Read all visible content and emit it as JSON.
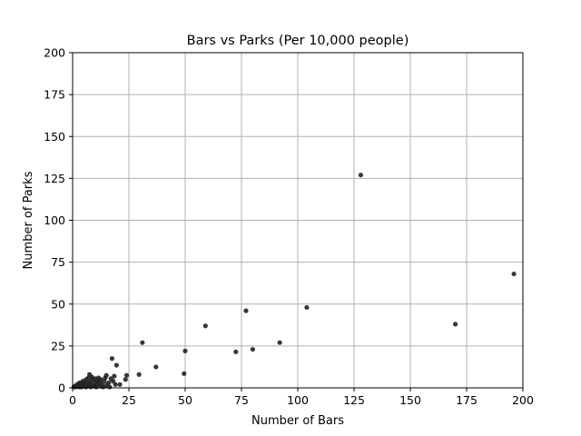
{
  "chart_data": {
    "type": "scatter",
    "title": "Bars vs Parks (Per 10,000 people)",
    "xlabel": "Number of Bars",
    "ylabel": "Number of Parks",
    "xlim": [
      0,
      200
    ],
    "ylim": [
      0,
      200
    ],
    "xticks": [
      0,
      25,
      50,
      75,
      100,
      125,
      150,
      175,
      200
    ],
    "yticks": [
      0,
      25,
      50,
      75,
      100,
      125,
      150,
      175,
      200
    ],
    "xtick_labels": [
      "0",
      "25",
      "50",
      "75",
      "100",
      "125",
      "150",
      "175",
      "200"
    ],
    "ytick_labels": [
      "0",
      "25",
      "50",
      "75",
      "100",
      "125",
      "150",
      "175",
      "200"
    ],
    "grid": true,
    "marker_color": "#222222",
    "points": [
      {
        "x": 0.5,
        "y": 0.5
      },
      {
        "x": 1,
        "y": 1
      },
      {
        "x": 1.5,
        "y": 0.5
      },
      {
        "x": 2,
        "y": 2
      },
      {
        "x": 2.5,
        "y": 1
      },
      {
        "x": 3,
        "y": 0.5
      },
      {
        "x": 3,
        "y": 3
      },
      {
        "x": 3.5,
        "y": 1.5
      },
      {
        "x": 4,
        "y": 2.5
      },
      {
        "x": 4,
        "y": 0.5
      },
      {
        "x": 4.5,
        "y": 4
      },
      {
        "x": 5,
        "y": 1
      },
      {
        "x": 5,
        "y": 3
      },
      {
        "x": 5.5,
        "y": 2
      },
      {
        "x": 6,
        "y": 5
      },
      {
        "x": 6,
        "y": 0.5
      },
      {
        "x": 6.5,
        "y": 3.5
      },
      {
        "x": 7,
        "y": 1.5
      },
      {
        "x": 7,
        "y": 6
      },
      {
        "x": 7.5,
        "y": 8
      },
      {
        "x": 7.5,
        "y": 2.5
      },
      {
        "x": 8,
        "y": 4
      },
      {
        "x": 8,
        "y": 0.5
      },
      {
        "x": 8.5,
        "y": 6.5
      },
      {
        "x": 9,
        "y": 2
      },
      {
        "x": 9,
        "y": 5
      },
      {
        "x": 9.5,
        "y": 1
      },
      {
        "x": 10,
        "y": 3
      },
      {
        "x": 10,
        "y": 5.5
      },
      {
        "x": 10.5,
        "y": 0.5
      },
      {
        "x": 11,
        "y": 2
      },
      {
        "x": 11,
        "y": 4
      },
      {
        "x": 11.5,
        "y": 6
      },
      {
        "x": 12,
        "y": 1
      },
      {
        "x": 12,
        "y": 3.5
      },
      {
        "x": 12.5,
        "y": 5
      },
      {
        "x": 13,
        "y": 2
      },
      {
        "x": 13.5,
        "y": 0.5
      },
      {
        "x": 14,
        "y": 4
      },
      {
        "x": 14.5,
        "y": 6
      },
      {
        "x": 15,
        "y": 1.5
      },
      {
        "x": 15,
        "y": 7.5
      },
      {
        "x": 16,
        "y": 3
      },
      {
        "x": 16.5,
        "y": 0.5
      },
      {
        "x": 17,
        "y": 5.5
      },
      {
        "x": 17.5,
        "y": 17.5
      },
      {
        "x": 18,
        "y": 4
      },
      {
        "x": 18.5,
        "y": 7
      },
      {
        "x": 19,
        "y": 2
      },
      {
        "x": 19.5,
        "y": 13.5
      },
      {
        "x": 21,
        "y": 2
      },
      {
        "x": 23.5,
        "y": 5
      },
      {
        "x": 24,
        "y": 7.5
      },
      {
        "x": 29.5,
        "y": 8
      },
      {
        "x": 31,
        "y": 27
      },
      {
        "x": 37,
        "y": 12.5
      },
      {
        "x": 49.5,
        "y": 8.5
      },
      {
        "x": 50,
        "y": 22
      },
      {
        "x": 59,
        "y": 37
      },
      {
        "x": 72.5,
        "y": 21.5
      },
      {
        "x": 77,
        "y": 46
      },
      {
        "x": 80,
        "y": 23
      },
      {
        "x": 92,
        "y": 27
      },
      {
        "x": 104,
        "y": 48
      },
      {
        "x": 128,
        "y": 127
      },
      {
        "x": 170,
        "y": 38
      },
      {
        "x": 196,
        "y": 68
      }
    ]
  }
}
